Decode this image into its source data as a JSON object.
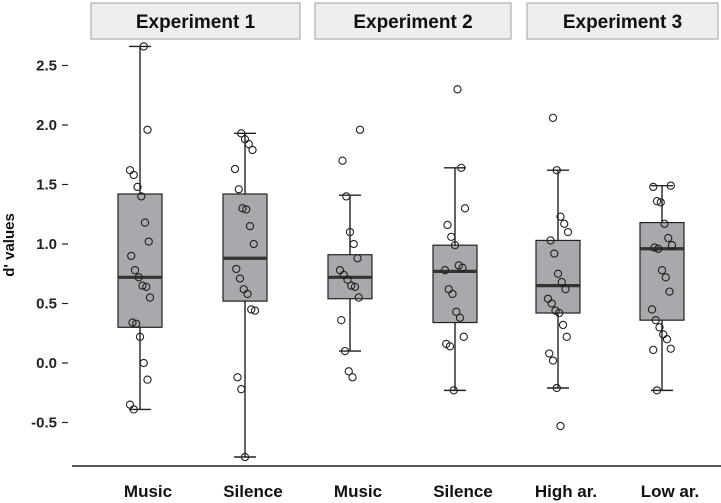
{
  "chart_data": {
    "type": "box",
    "ylabel": "d' values",
    "ylim": [
      -0.8,
      2.7
    ],
    "yticks": [
      "2.5",
      "2.0",
      "1.5",
      "1.0",
      "0.5",
      "0.0",
      "-0.5"
    ],
    "colors": {
      "box_fill": "#a8a8ad",
      "strip_fill": "#eeeeee",
      "strip_border": "#a0a0a0",
      "line": "#222222"
    },
    "panels": [
      {
        "title": "Experiment 1",
        "groups": [
          {
            "label": "Music",
            "box": {
              "whisker_low": -0.39,
              "q1": 0.3,
              "median": 0.72,
              "q3": 1.42,
              "whisker_high": 2.66
            },
            "points": [
              2.66,
              1.96,
              1.62,
              1.58,
              1.48,
              1.4,
              1.18,
              1.02,
              0.9,
              0.78,
              0.72,
              0.65,
              0.64,
              0.55,
              0.34,
              0.33,
              0.22,
              0.0,
              -0.14,
              -0.35,
              -0.39
            ]
          },
          {
            "label": "Silence",
            "box": {
              "whisker_low": -0.79,
              "q1": 0.52,
              "median": 0.88,
              "q3": 1.42,
              "whisker_high": 1.93
            },
            "points": [
              1.93,
              1.88,
              1.84,
              1.79,
              1.63,
              1.46,
              1.3,
              1.29,
              1.15,
              1.0,
              0.79,
              0.71,
              0.62,
              0.58,
              0.45,
              0.44,
              -0.12,
              -0.22,
              -0.79
            ]
          }
        ]
      },
      {
        "title": "Experiment 2",
        "groups": [
          {
            "label": "Music",
            "box": {
              "whisker_low": 0.1,
              "q1": 0.54,
              "median": 0.72,
              "q3": 0.91,
              "whisker_high": 1.41
            },
            "points": [
              1.96,
              1.7,
              1.4,
              1.1,
              1.0,
              0.88,
              0.78,
              0.74,
              0.7,
              0.65,
              0.64,
              0.55,
              0.36,
              0.1,
              -0.07,
              -0.12
            ]
          },
          {
            "label": "Silence",
            "box": {
              "whisker_low": -0.23,
              "q1": 0.34,
              "median": 0.77,
              "q3": 0.99,
              "whisker_high": 1.64
            },
            "points": [
              2.3,
              1.64,
              1.3,
              1.16,
              1.06,
              0.99,
              0.82,
              0.8,
              0.78,
              0.62,
              0.58,
              0.43,
              0.38,
              0.22,
              0.16,
              0.14,
              -0.23
            ]
          }
        ]
      },
      {
        "title": "Experiment 3",
        "groups": [
          {
            "label": "High ar.",
            "box": {
              "whisker_low": -0.21,
              "q1": 0.42,
              "median": 0.65,
              "q3": 1.03,
              "whisker_high": 1.62
            },
            "points": [
              2.06,
              1.62,
              1.23,
              1.17,
              1.1,
              1.03,
              0.92,
              0.75,
              0.68,
              0.62,
              0.54,
              0.5,
              0.44,
              0.42,
              0.32,
              0.22,
              0.08,
              0.02,
              -0.21,
              -0.53
            ]
          },
          {
            "label": "Low ar.",
            "box": {
              "whisker_low": -0.23,
              "q1": 0.36,
              "median": 0.96,
              "q3": 1.18,
              "whisker_high": 1.49
            },
            "points": [
              1.49,
              1.48,
              1.36,
              1.35,
              1.17,
              1.05,
              0.99,
              0.97,
              0.96,
              0.78,
              0.72,
              0.6,
              0.45,
              0.36,
              0.3,
              0.24,
              0.2,
              0.12,
              0.11,
              -0.23
            ]
          }
        ]
      }
    ]
  }
}
